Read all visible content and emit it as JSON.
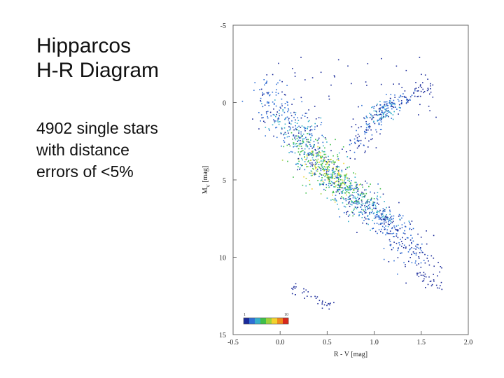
{
  "slide": {
    "title_lines": [
      "Hipparcos",
      "H-R Diagram"
    ],
    "subtitle_lines": [
      "4902 single stars",
      "with distance",
      "errors of <5%"
    ]
  },
  "chart_data": {
    "type": "scatter",
    "title": "",
    "xlabel": "R - V [mag]",
    "ylabel": "M_V [mag]",
    "xlim": [
      -0.5,
      2.0
    ],
    "ylim": [
      15,
      -5
    ],
    "y_inverted": true,
    "x_ticks": [
      -0.5,
      0.0,
      0.5,
      1.0,
      1.5,
      2.0
    ],
    "x_tick_labels": [
      "-0.5",
      "0.0",
      "0.5",
      "1.0",
      "1.5",
      "2.0"
    ],
    "y_ticks": [
      -5,
      0,
      5,
      10,
      15
    ],
    "y_tick_labels": [
      "-5",
      "0",
      "5",
      "10",
      "15"
    ],
    "grid": false,
    "color_scale": {
      "label_min": "1",
      "label_max": "10",
      "colors": [
        "#1a2a9a",
        "#2f6fd6",
        "#36b0c9",
        "#3fbf4a",
        "#9fd23a",
        "#f2d22e",
        "#f28a1e",
        "#d8281c"
      ]
    },
    "series": [
      {
        "group": "main_sequence",
        "points": [
          [
            -0.18,
            -1.2
          ],
          [
            -0.12,
            -0.6
          ],
          [
            -0.05,
            0.2
          ],
          [
            0.0,
            0.6
          ],
          [
            0.05,
            1.0
          ],
          [
            0.1,
            1.4
          ],
          [
            0.15,
            1.8
          ],
          [
            0.2,
            2.2
          ],
          [
            0.25,
            2.6
          ],
          [
            0.3,
            3.0
          ],
          [
            0.35,
            3.4
          ],
          [
            0.4,
            3.8
          ],
          [
            0.45,
            4.2
          ],
          [
            0.5,
            4.5
          ],
          [
            0.55,
            4.8
          ],
          [
            0.6,
            5.1
          ],
          [
            0.65,
            5.4
          ],
          [
            0.7,
            5.7
          ],
          [
            0.75,
            6.0
          ],
          [
            0.8,
            6.2
          ],
          [
            0.85,
            6.5
          ],
          [
            0.9,
            6.8
          ],
          [
            0.95,
            7.0
          ],
          [
            1.0,
            7.2
          ],
          [
            1.05,
            7.4
          ],
          [
            1.1,
            7.6
          ],
          [
            1.15,
            7.9
          ],
          [
            1.2,
            8.2
          ],
          [
            1.25,
            8.5
          ],
          [
            1.3,
            8.8
          ],
          [
            1.35,
            9.2
          ],
          [
            1.4,
            9.6
          ],
          [
            1.45,
            10.0
          ],
          [
            1.5,
            10.5
          ],
          [
            1.55,
            11.0
          ],
          [
            1.6,
            11.8
          ]
        ],
        "spread_color": 0.35,
        "spread_mag": 0.55,
        "density": [
          0.25,
          0.3,
          0.35,
          0.4,
          0.45,
          0.5,
          0.55,
          0.65,
          0.75,
          0.85,
          0.9,
          0.95,
          1.0,
          1.0,
          0.95,
          0.9,
          0.8,
          0.7,
          0.65,
          0.6,
          0.55,
          0.5,
          0.45,
          0.42,
          0.4,
          0.35,
          0.3,
          0.28,
          0.25,
          0.22,
          0.2,
          0.18,
          0.15,
          0.12,
          0.1,
          0.08
        ]
      },
      {
        "group": "giant_branch",
        "points": [
          [
            0.75,
            3.2
          ],
          [
            0.82,
            2.6
          ],
          [
            0.88,
            2.0
          ],
          [
            0.95,
            1.5
          ],
          [
            1.0,
            1.0
          ],
          [
            1.05,
            0.7
          ],
          [
            1.1,
            0.5
          ],
          [
            1.15,
            0.3
          ],
          [
            1.2,
            0.0
          ],
          [
            1.3,
            -0.3
          ],
          [
            1.4,
            -0.6
          ],
          [
            1.55,
            -1.0
          ]
        ],
        "spread_color": 0.18,
        "spread_mag": 0.5,
        "density": [
          0.15,
          0.18,
          0.22,
          0.3,
          0.4,
          0.45,
          0.45,
          0.4,
          0.3,
          0.2,
          0.15,
          0.1
        ]
      },
      {
        "group": "white_dwarfs",
        "points": [
          [
            0.1,
            11.8
          ],
          [
            0.2,
            12.2
          ],
          [
            0.35,
            12.6
          ],
          [
            0.5,
            13.0
          ]
        ],
        "spread_color": 0.08,
        "spread_mag": 0.3,
        "density": [
          0.02,
          0.02,
          0.02,
          0.02
        ]
      }
    ]
  }
}
